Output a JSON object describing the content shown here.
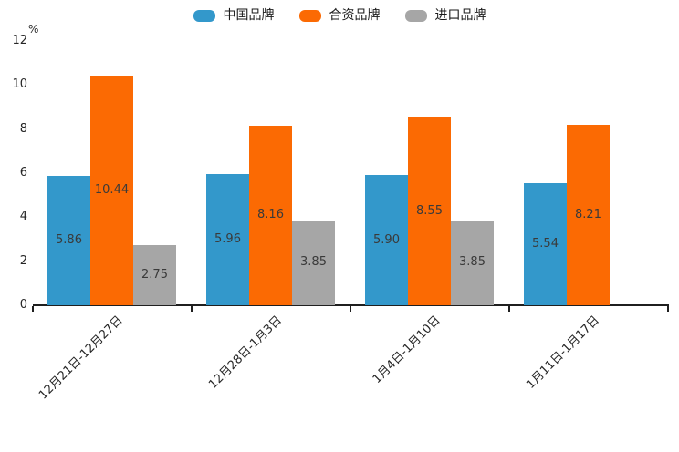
{
  "chart_data": {
    "type": "bar",
    "title": "",
    "ylabel": "%",
    "xlabel": "",
    "ylim": [
      0,
      12
    ],
    "yticks": [
      0,
      2,
      4,
      6,
      8,
      10,
      12
    ],
    "grid": false,
    "legend_position": "top",
    "value_labels": true,
    "categories": [
      "12月21日-12月27日",
      "12月28日-1月3日",
      "1月4日-1月10日",
      "1月11日-1月17日"
    ],
    "series": [
      {
        "name": "中国品牌",
        "color": "#3398CB",
        "values": [
          5.86,
          5.96,
          5.9,
          5.54
        ]
      },
      {
        "name": "合资品牌",
        "color": "#FB6A03",
        "values": [
          10.44,
          8.16,
          8.55,
          8.21
        ]
      },
      {
        "name": "进口品牌",
        "color": "#A6A6A6",
        "values": [
          2.75,
          3.85,
          3.85,
          null
        ]
      }
    ],
    "value_label_format": "0.00",
    "axis_color": "#1f1f1f",
    "text_color": "#262626"
  }
}
